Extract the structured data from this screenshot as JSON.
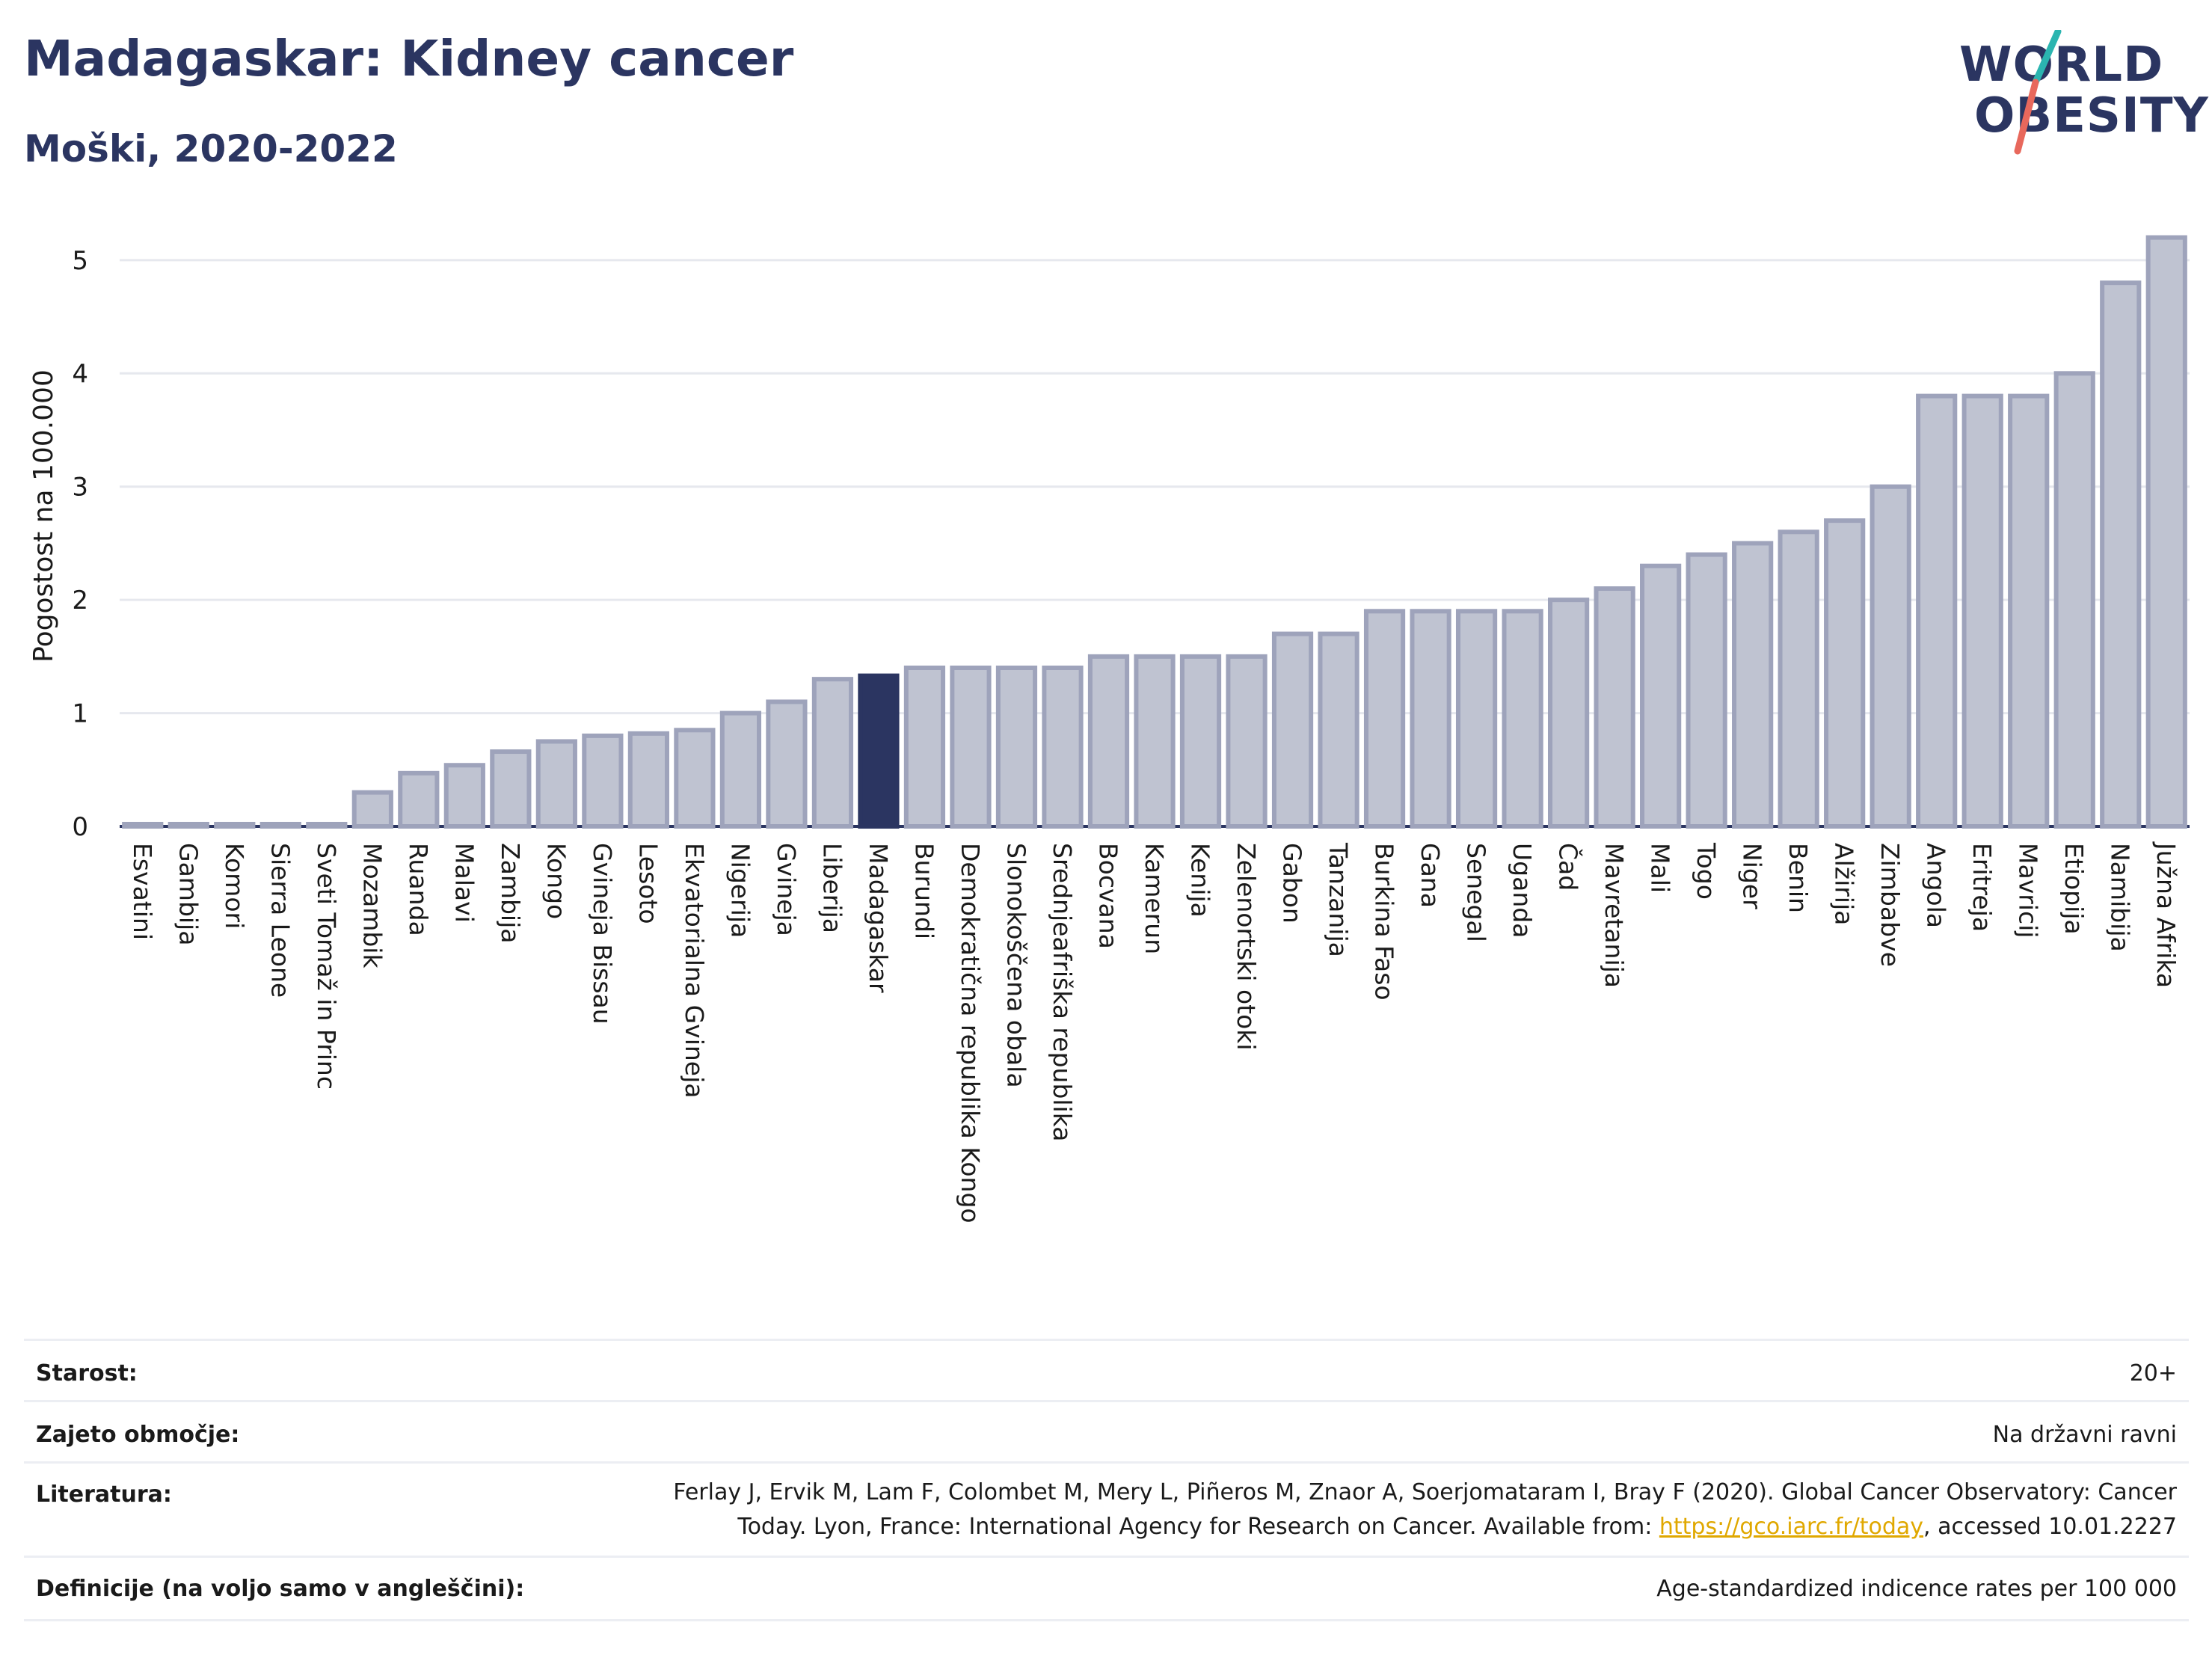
{
  "header": {
    "title": "Madagaskar: Kidney cancer",
    "subtitle": "Moški, 2020-2022"
  },
  "logo": {
    "line1": "WORLD",
    "line2": "OBESITY"
  },
  "colors": {
    "bar": "#bfc3d1",
    "bar_stroke": "#9ea3bb",
    "highlight": "#2b3561",
    "title": "#2b3561",
    "logo_accent_teal": "#2bb5b0",
    "logo_accent_red": "#e8685c"
  },
  "chart_data": {
    "type": "bar",
    "ylabel": "Pogostost na 100.000",
    "ylim": [
      0,
      5.25
    ],
    "yticks": [
      0,
      1,
      2,
      3,
      4,
      5
    ],
    "grid": true,
    "highlight": "Madagaskar",
    "categories": [
      "Esvatini",
      "Gambija",
      "Komori",
      "Sierra Leone",
      "Sveti Tomaž in Princ",
      "Mozambik",
      "Ruanda",
      "Malavi",
      "Zambija",
      "Kongo",
      "Gvineja Bissau",
      "Lesoto",
      "Ekvatorialna Gvineja",
      "Nigerija",
      "Gvineja",
      "Liberija",
      "Madagaskar",
      "Burundi",
      "Demokratična republika Kongo",
      "Slonokoščena obala",
      "Srednjeafriška republika",
      "Bocvana",
      "Kamerun",
      "Kenija",
      "Zelenortski otoki",
      "Gabon",
      "Tanzanija",
      "Burkina Faso",
      "Gana",
      "Senegal",
      "Uganda",
      "Čad",
      "Mavretanija",
      "Mali",
      "Togo",
      "Niger",
      "Benin",
      "Alžirija",
      "Zimbabve",
      "Angola",
      "Eritreja",
      "Mavricij",
      "Etiopija",
      "Namibija",
      "Južna Afrika"
    ],
    "values": [
      0.02,
      0.02,
      0.02,
      0.02,
      0.02,
      0.3,
      0.47,
      0.54,
      0.66,
      0.75,
      0.8,
      0.82,
      0.85,
      1.0,
      1.1,
      1.3,
      1.33,
      1.4,
      1.4,
      1.4,
      1.4,
      1.5,
      1.5,
      1.5,
      1.5,
      1.7,
      1.7,
      1.9,
      1.9,
      1.9,
      1.9,
      2.0,
      2.1,
      2.3,
      2.4,
      2.5,
      2.6,
      2.7,
      3.0,
      3.8,
      3.8,
      3.8,
      4.0,
      4.8,
      5.2
    ]
  },
  "info": {
    "age_label": "Starost:",
    "age_value": "20+",
    "area_label": "Zajeto območje:",
    "area_value": "Na državni ravni",
    "ref_label": "Literatura:",
    "ref_line1": "Ferlay J, Ervik M, Lam F, Colombet M, Mery L, Piñeros M, Znaor A, Soerjomataram I, Bray F (2020). Global Cancer Observatory: Cancer",
    "ref_line2_pre": "Today. Lyon, France: International Agency for Research on Cancer. Available from: ",
    "ref_link": "https://gco.iarc.fr/today",
    "ref_line2_post": ", accessed 10.01.2227",
    "def_label": "Definicije (na voljo samo v angleščini):",
    "def_value": "Age-standardized indicence rates per 100 000"
  }
}
